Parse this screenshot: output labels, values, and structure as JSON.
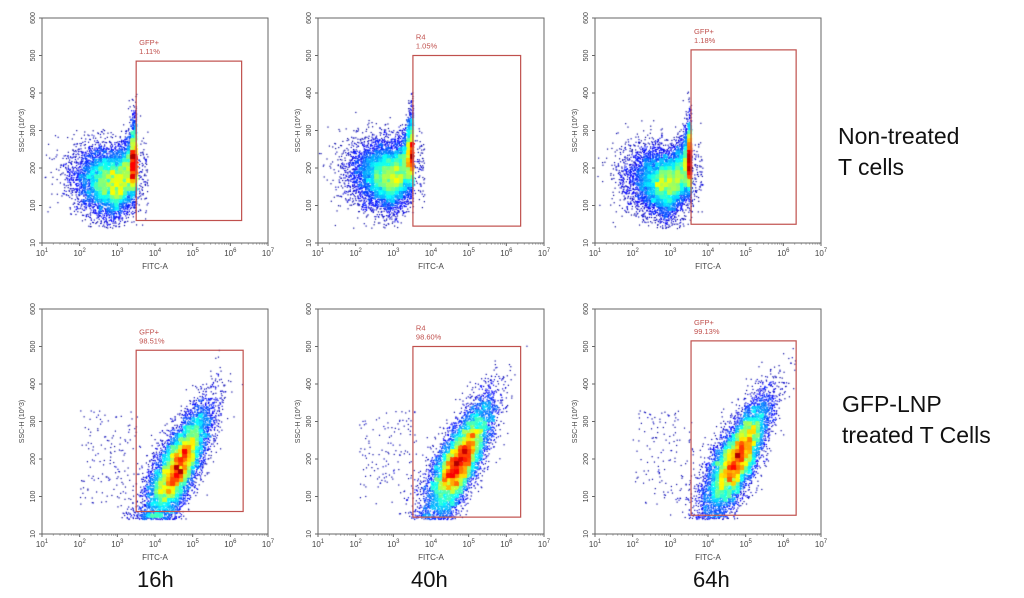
{
  "row_labels": [
    "Non-treated\nT cells",
    "GFP-LNP\ntreated T Cells"
  ],
  "time_labels": [
    "16h",
    "40h",
    "64h"
  ],
  "chart_data": [
    {
      "type": "scatter",
      "subtype": "flow-cytometry-density",
      "row": "Non-treated T cells",
      "time": "16h",
      "xlabel": "FITC-A",
      "ylabel": "SSC-H (10^3)",
      "xscale": "log",
      "xlim": [
        10,
        10000000
      ],
      "ylim": [
        0,
        600
      ],
      "yticks": [
        "10",
        "100",
        "200",
        "300",
        "400",
        "500",
        "600"
      ],
      "xticks": [
        "10^1",
        "10^2",
        "10^3",
        "10^4",
        "10^5",
        "10^6",
        "10^7"
      ],
      "gate": {
        "name": "GFP+",
        "percent": "1.11%",
        "x_range_log10": [
          3.5,
          6.3
        ],
        "y_range": [
          60,
          485
        ]
      },
      "population": {
        "center_log10_x": 3.0,
        "center_y": 160,
        "gated": false
      }
    },
    {
      "type": "scatter",
      "subtype": "flow-cytometry-density",
      "row": "Non-treated T cells",
      "time": "40h",
      "xlabel": "FITC-A",
      "ylabel": "SSC-H (10^3)",
      "xscale": "log",
      "xlim": [
        10,
        10000000
      ],
      "ylim": [
        0,
        600
      ],
      "yticks": [
        "10",
        "100",
        "200",
        "300",
        "400",
        "500",
        "600"
      ],
      "xticks": [
        "10^1",
        "10^2",
        "10^3",
        "10^4",
        "10^5",
        "10^6",
        "10^7"
      ],
      "gate": {
        "name": "R4",
        "percent": "1.05%",
        "x_range_log10": [
          3.52,
          6.38
        ],
        "y_range": [
          45,
          500
        ]
      },
      "population": {
        "center_log10_x": 3.0,
        "center_y": 175,
        "gated": false
      }
    },
    {
      "type": "scatter",
      "subtype": "flow-cytometry-density",
      "row": "Non-treated T cells",
      "time": "64h",
      "xlabel": "FITC-A",
      "ylabel": "SSC-H (10^3)",
      "xscale": "log",
      "xlim": [
        10,
        10000000
      ],
      "ylim": [
        0,
        600
      ],
      "yticks": [
        "10",
        "100",
        "200",
        "300",
        "400",
        "500",
        "600"
      ],
      "xticks": [
        "10^1",
        "10^2",
        "10^3",
        "10^4",
        "10^5",
        "10^6",
        "10^7"
      ],
      "gate": {
        "name": "GFP+",
        "percent": "1.18%",
        "x_range_log10": [
          3.55,
          6.34
        ],
        "y_range": [
          50,
          515
        ]
      },
      "population": {
        "center_log10_x": 3.0,
        "center_y": 160,
        "gated": false
      }
    },
    {
      "type": "scatter",
      "subtype": "flow-cytometry-density",
      "row": "GFP-LNP treated T Cells",
      "time": "16h",
      "xlabel": "FITC-A",
      "ylabel": "SSC-H (10^3)",
      "xscale": "log",
      "xlim": [
        10,
        10000000
      ],
      "ylim": [
        0,
        600
      ],
      "yticks": [
        "10",
        "100",
        "200",
        "300",
        "400",
        "500",
        "600"
      ],
      "xticks": [
        "10^1",
        "10^2",
        "10^3",
        "10^4",
        "10^5",
        "10^6",
        "10^7"
      ],
      "gate": {
        "name": "GFP+",
        "percent": "98.51%",
        "x_range_log10": [
          3.5,
          6.34
        ],
        "y_range": [
          60,
          490
        ]
      },
      "population": {
        "center_log10_x": 4.6,
        "center_y": 175,
        "gated": true
      }
    },
    {
      "type": "scatter",
      "subtype": "flow-cytometry-density",
      "row": "GFP-LNP treated T Cells",
      "time": "40h",
      "xlabel": "FITC-A",
      "ylabel": "SSC-H (10^3)",
      "xscale": "log",
      "xlim": [
        10,
        10000000
      ],
      "ylim": [
        0,
        600
      ],
      "yticks": [
        "10",
        "100",
        "200",
        "300",
        "400",
        "500",
        "600"
      ],
      "xticks": [
        "10^1",
        "10^2",
        "10^3",
        "10^4",
        "10^5",
        "10^6",
        "10^7"
      ],
      "gate": {
        "name": "R4",
        "percent": "98.60%",
        "x_range_log10": [
          3.52,
          6.38
        ],
        "y_range": [
          45,
          500
        ]
      },
      "population": {
        "center_log10_x": 4.75,
        "center_y": 190,
        "gated": true
      }
    },
    {
      "type": "scatter",
      "subtype": "flow-cytometry-density",
      "row": "GFP-LNP treated T Cells",
      "time": "64h",
      "xlabel": "FITC-A",
      "ylabel": "SSC-H (10^3)",
      "xscale": "log",
      "xlim": [
        10,
        10000000
      ],
      "ylim": [
        0,
        600
      ],
      "yticks": [
        "10",
        "100",
        "200",
        "300",
        "400",
        "500",
        "600"
      ],
      "xticks": [
        "10^1",
        "10^2",
        "10^3",
        "10^4",
        "10^5",
        "10^6",
        "10^7"
      ],
      "gate": {
        "name": "GFP+",
        "percent": "99.13%",
        "x_range_log10": [
          3.55,
          6.34
        ],
        "y_range": [
          50,
          515
        ]
      },
      "population": {
        "center_log10_x": 4.75,
        "center_y": 195,
        "gated": true
      }
    }
  ],
  "colors": {
    "gate": "#c0504d",
    "axis": "#555555",
    "text": "#444444"
  }
}
